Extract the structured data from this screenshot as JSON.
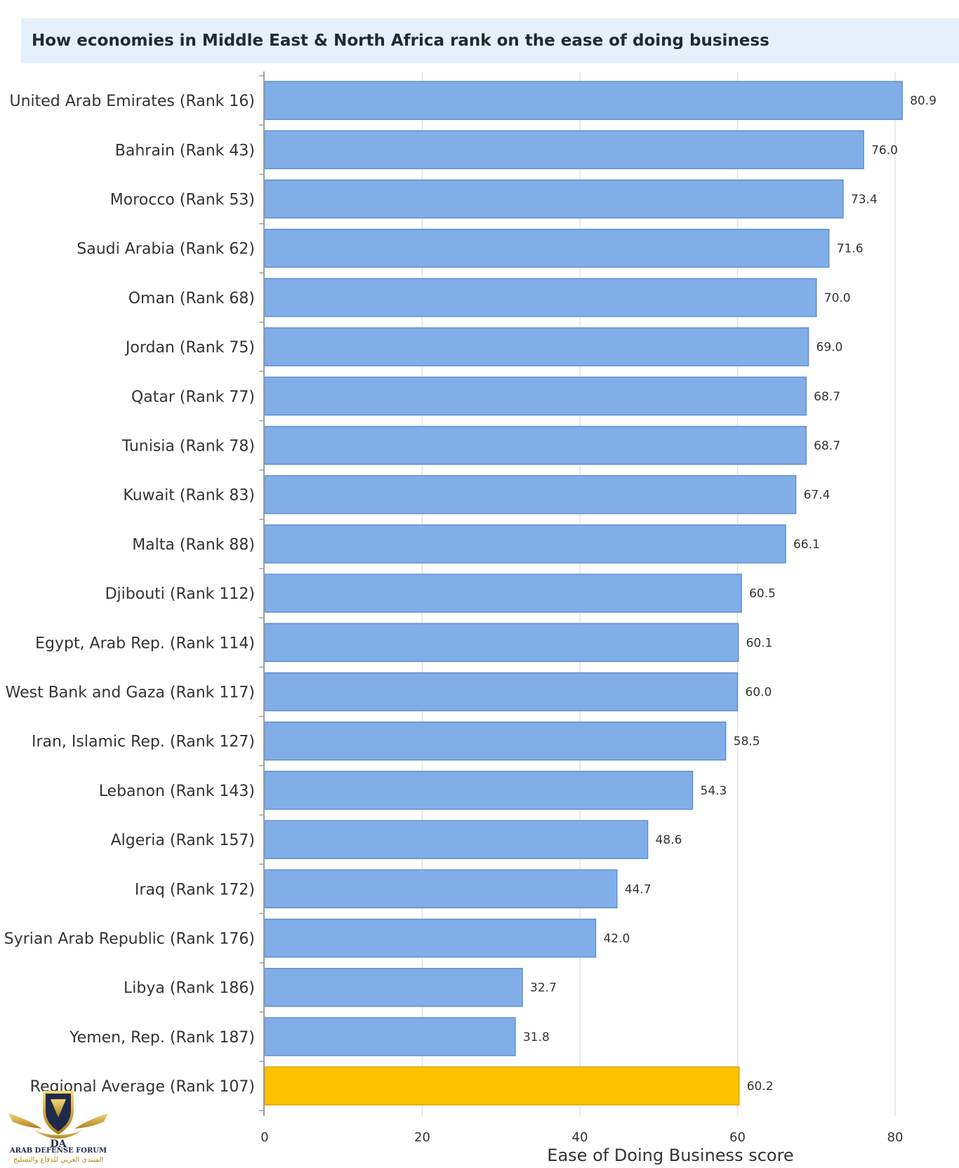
{
  "title": "How economies in Middle East & North Africa rank on the ease of doing business",
  "chart_data": {
    "type": "bar",
    "orientation": "horizontal",
    "title": "How economies in Middle East & North Africa rank on the ease of doing business",
    "xlabel": "Ease of Doing Business score",
    "ylabel": "",
    "xlim": [
      0,
      80
    ],
    "xticks": [
      0,
      20,
      40,
      60,
      80
    ],
    "grid": "vertical",
    "legend": "none",
    "categories": [
      "United Arab Emirates (Rank 16)",
      "Bahrain (Rank 43)",
      "Morocco (Rank 53)",
      "Saudi Arabia (Rank 62)",
      "Oman (Rank 68)",
      "Jordan (Rank 75)",
      "Qatar (Rank 77)",
      "Tunisia (Rank 78)",
      "Kuwait (Rank 83)",
      "Malta (Rank 88)",
      "Djibouti (Rank 112)",
      "Egypt, Arab Rep. (Rank 114)",
      "West Bank and Gaza (Rank 117)",
      "Iran, Islamic Rep. (Rank 127)",
      "Lebanon (Rank 143)",
      "Algeria (Rank 157)",
      "Iraq (Rank 172)",
      "Syrian Arab Republic (Rank 176)",
      "Libya (Rank 186)",
      "Yemen, Rep. (Rank 187)",
      "Regional Average (Rank 107)"
    ],
    "values": [
      80.9,
      76.0,
      73.4,
      71.6,
      70.0,
      69.0,
      68.7,
      68.7,
      67.4,
      66.1,
      60.5,
      60.1,
      60.0,
      58.5,
      54.3,
      48.6,
      44.7,
      42.0,
      32.7,
      31.8,
      60.2
    ],
    "value_labels": [
      "80.9",
      "76.0",
      "73.4",
      "71.6",
      "70.0",
      "69.0",
      "68.7",
      "68.7",
      "67.4",
      "66.1",
      "60.5",
      "60.1",
      "60.0",
      "58.5",
      "54.3",
      "48.6",
      "44.7",
      "42.0",
      "32.7",
      "31.8",
      "60.2"
    ],
    "highlight_category": "Regional Average (Rank 107)",
    "colors": {
      "bar": "#82aee8",
      "bar_border": "#5d8fd0",
      "highlight": "#fcc200",
      "highlight_border": "#d9a400",
      "grid": "#e3e3e3",
      "axis": "#9aa0a6",
      "title_band": "#e4f1fc"
    }
  },
  "watermark": {
    "mark": "DA",
    "name_en": "ARAB DEFENSE FORUM",
    "name_ar": "المنتدى العربي للدفاع والتسليح"
  }
}
